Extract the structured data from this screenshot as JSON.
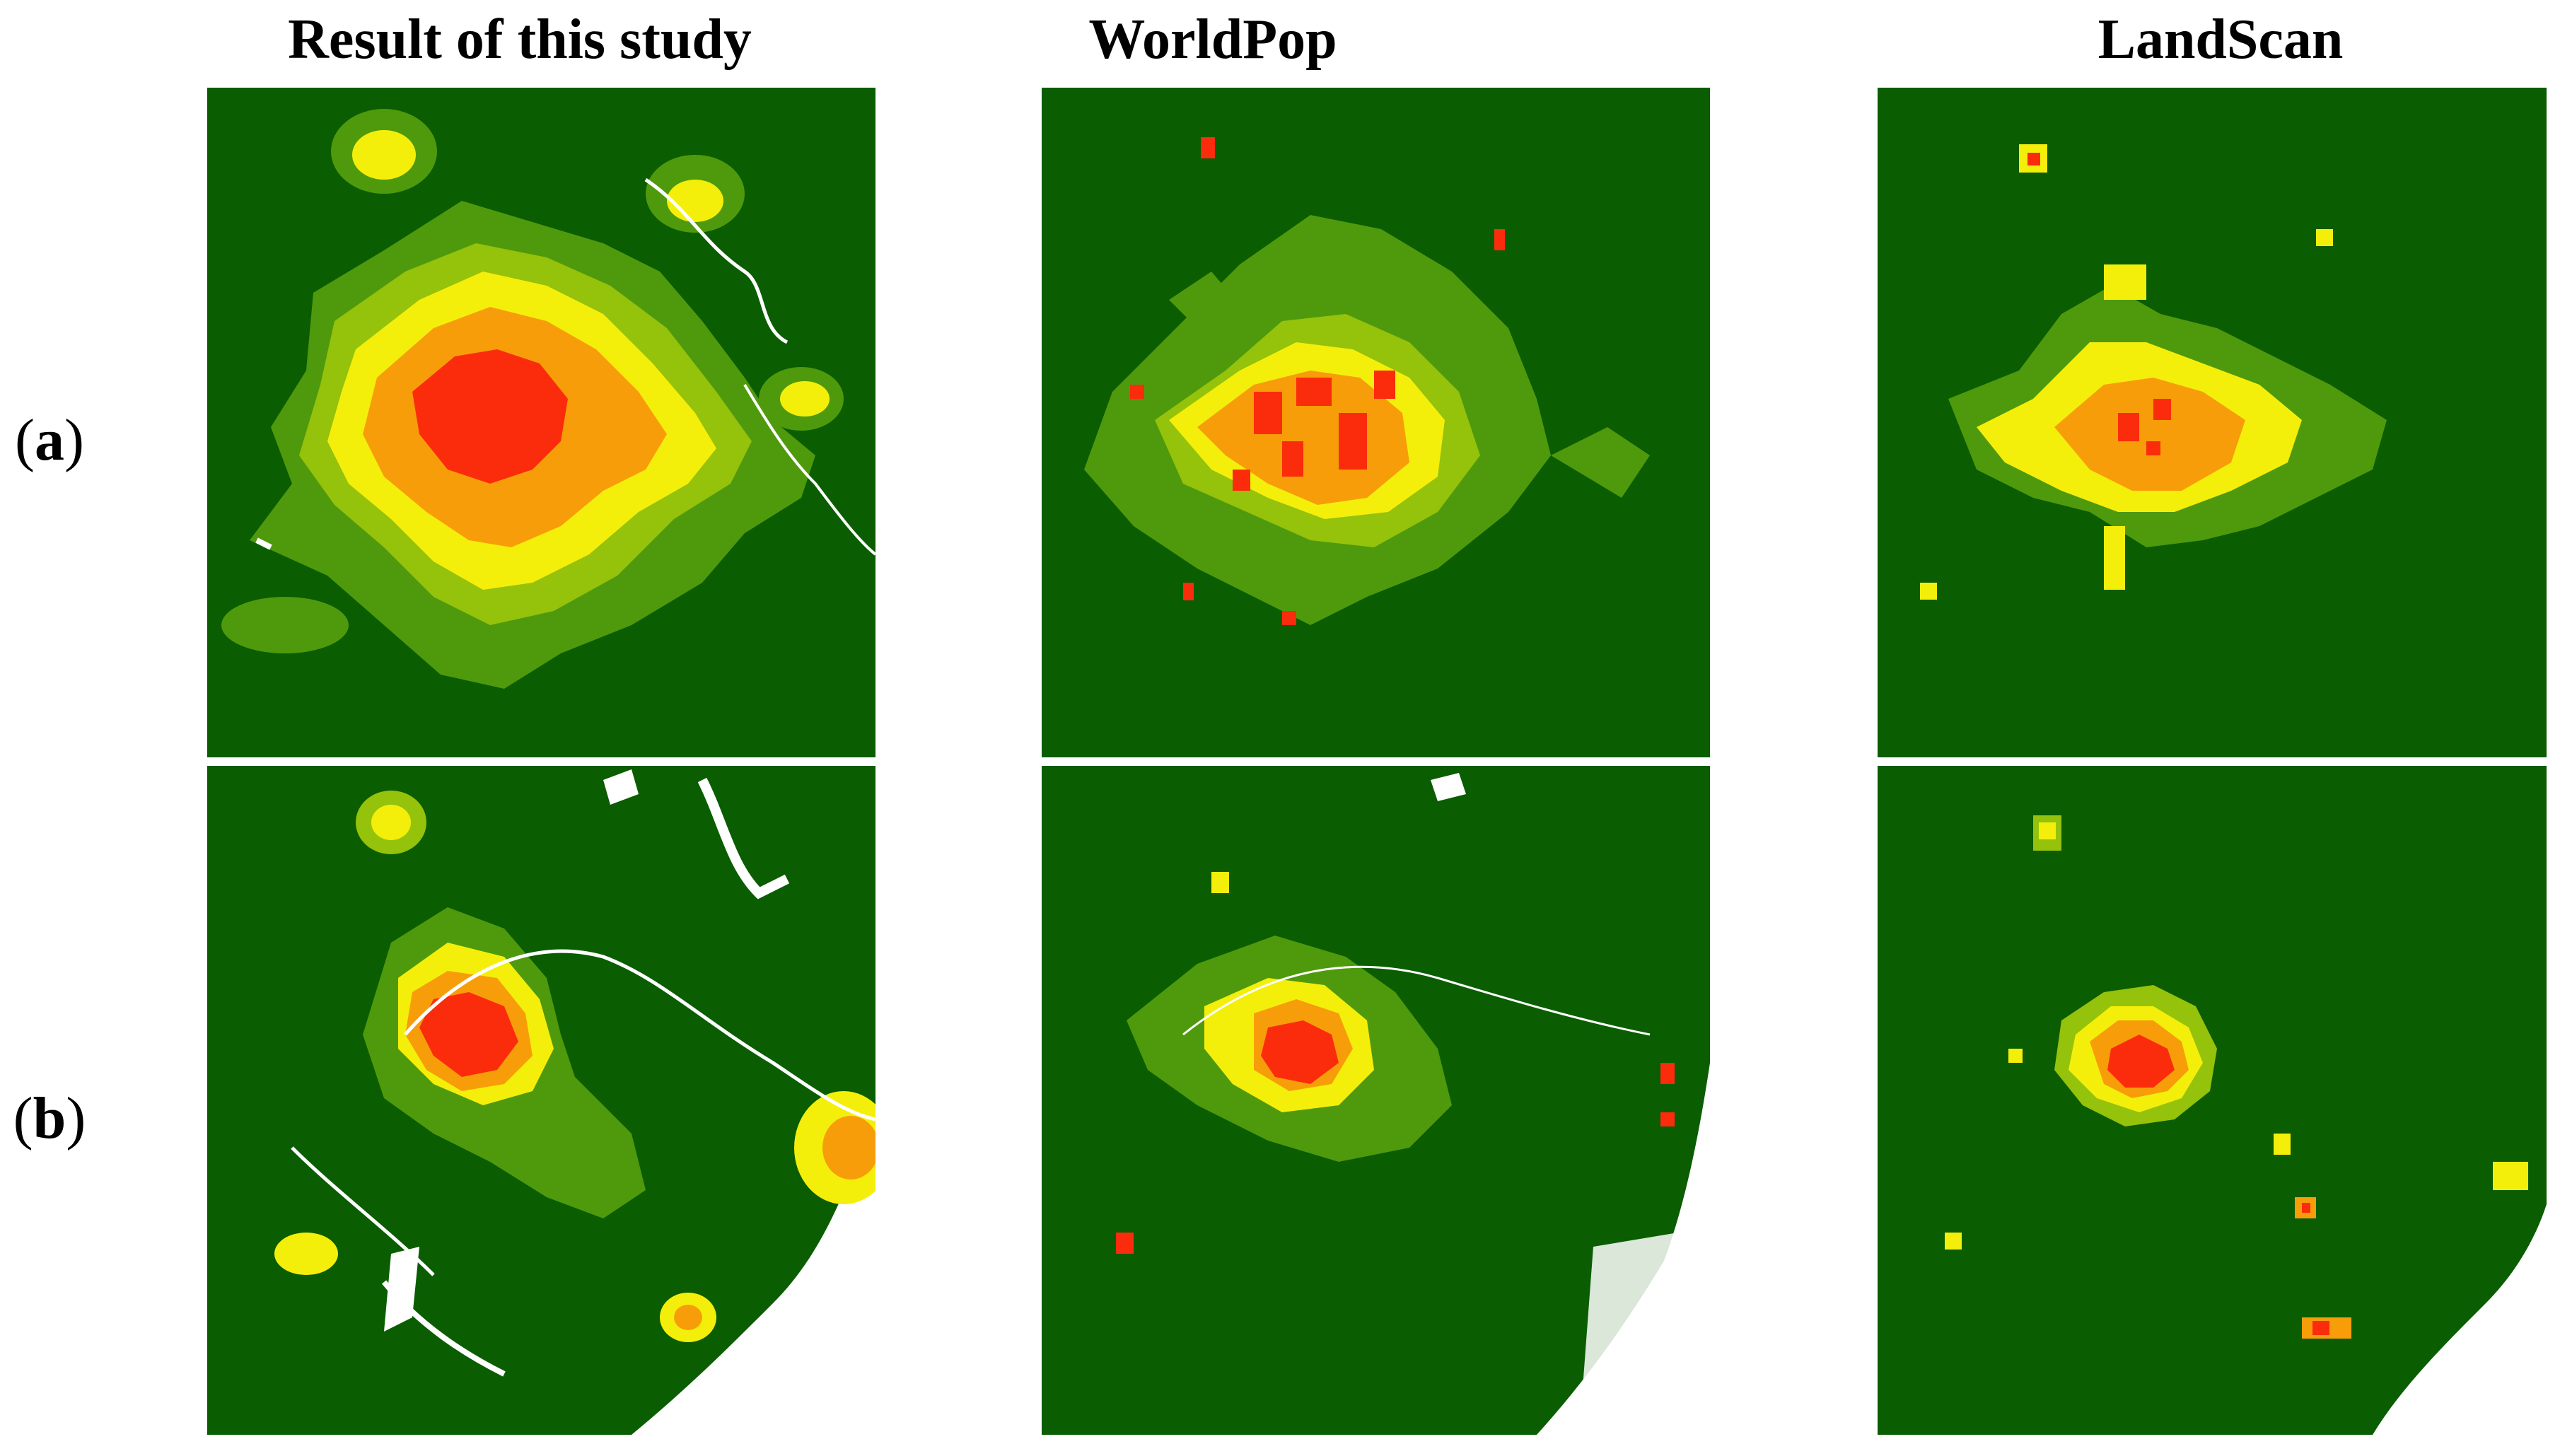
{
  "columns": {
    "study": "Result of this study",
    "worldpop": "WorldPop",
    "landscan": "LandScan"
  },
  "rows": {
    "a": "a",
    "b": "b"
  },
  "colors": {
    "background": "#0a5d00",
    "low": "#4f9a0c",
    "medium_low": "#95c20a",
    "medium": "#f4ef0a",
    "high": "#f89d0a",
    "very_high": "#fb2c0b",
    "water": "#ffffff"
  }
}
